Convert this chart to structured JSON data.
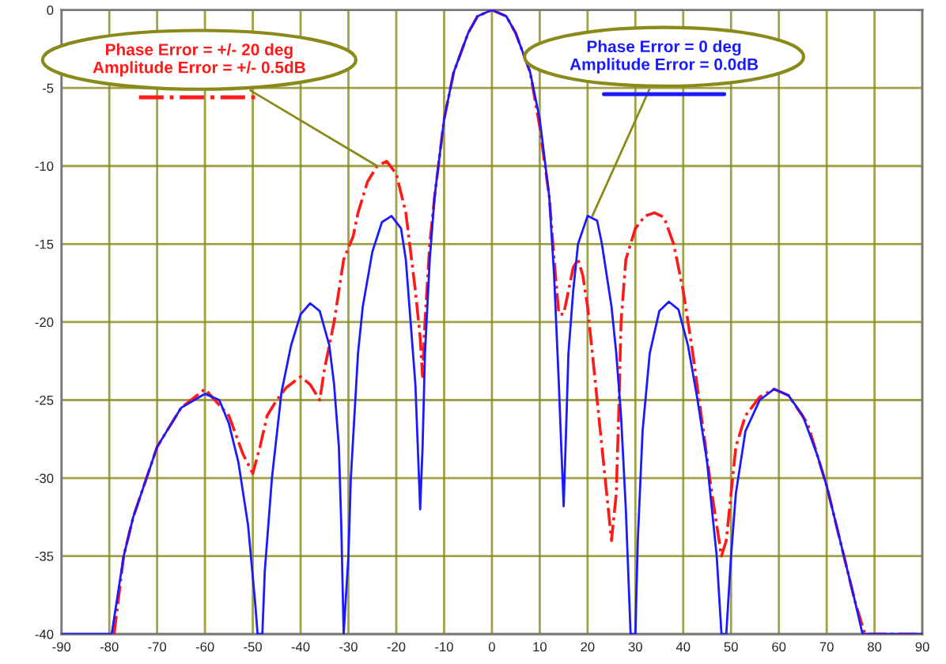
{
  "chart_data": {
    "type": "line",
    "xlim": [
      -90,
      90
    ],
    "xticks": [
      -90,
      -80,
      -70,
      -60,
      -50,
      -40,
      -30,
      -20,
      -10,
      0,
      10,
      20,
      30,
      40,
      50,
      60,
      70,
      80,
      90
    ],
    "ylim": [
      -40,
      0
    ],
    "yticks": [
      -40,
      -35,
      -30,
      -25,
      -20,
      -15,
      -10,
      -5,
      0
    ],
    "grid": true,
    "series": [
      {
        "color": "#ff1a1a",
        "line_style": "dashdot",
        "x": [
          -79,
          -77,
          -75,
          -70,
          -65,
          -60,
          -55,
          -52,
          -50,
          -48.5,
          -47,
          -45,
          -43,
          -40,
          -38,
          -36,
          -35,
          -33,
          -31,
          -29,
          -28,
          -26,
          -24,
          -22,
          -20,
          -18,
          -17,
          -16,
          -15,
          -14.5,
          -14,
          -13,
          -12,
          -10,
          -8,
          -5,
          -3,
          0,
          3,
          5,
          8,
          10,
          12,
          13,
          14,
          15,
          16,
          17,
          18,
          19,
          20,
          21,
          22,
          23,
          24,
          25,
          26,
          26.5,
          27,
          28,
          30,
          32,
          34,
          36,
          38,
          40,
          42,
          44,
          46,
          47,
          48,
          49,
          50,
          51,
          53,
          56,
          59,
          62,
          66,
          70,
          74,
          76,
          78,
          90
        ],
        "values": [
          -40,
          -35,
          -32.5,
          -28,
          -25.5,
          -24.3,
          -26,
          -28.5,
          -29.7,
          -28,
          -26,
          -25,
          -24.2,
          -23.5,
          -24,
          -25,
          -23,
          -20,
          -16,
          -14.5,
          -13,
          -11,
          -10,
          -9.7,
          -10.5,
          -13,
          -15.5,
          -18,
          -21,
          -23.5,
          -20,
          -15,
          -12,
          -7,
          -4,
          -1.5,
          -0.4,
          0,
          -0.4,
          -1.5,
          -4,
          -7.5,
          -12,
          -16,
          -19.5,
          -19.5,
          -18,
          -16.5,
          -16,
          -17,
          -19,
          -22,
          -25,
          -28,
          -31,
          -34,
          -31,
          -26,
          -20,
          -16,
          -14,
          -13.2,
          -13,
          -13.3,
          -15,
          -18,
          -22,
          -26.5,
          -31,
          -33,
          -35,
          -34,
          -31,
          -28,
          -26,
          -24.8,
          -24.3,
          -24.7,
          -26.5,
          -30.5,
          -35.5,
          -38,
          -40,
          -40
        ]
      },
      {
        "color": "#1a1aff",
        "line_style": "solid",
        "x": [
          -90,
          -80,
          -79.5,
          -77,
          -75,
          -70,
          -65,
          -60,
          -57,
          -55,
          -53,
          -51,
          -49.5,
          -49,
          -48,
          -47.5,
          -46,
          -44,
          -42,
          -40,
          -38,
          -36,
          -34,
          -33,
          -32,
          -31.5,
          -31,
          -30,
          -29.5,
          -28,
          -27,
          -25,
          -23,
          -21,
          -19,
          -18,
          -17,
          -16,
          -15.5,
          -15,
          -14.5,
          -14,
          -13,
          -12,
          -10,
          -8,
          -5,
          -3,
          0,
          3,
          5,
          8,
          10,
          12,
          13,
          14,
          14.5,
          15,
          15.5,
          16,
          17,
          18,
          20,
          22,
          23,
          25,
          26,
          27,
          28,
          29,
          30,
          30.5,
          31.5,
          33,
          35,
          37,
          39,
          41,
          43,
          45,
          47,
          48,
          49,
          50,
          51,
          53,
          56,
          59,
          62,
          65,
          68,
          70,
          72,
          74,
          76,
          77.5,
          90
        ],
        "values": [
          -40,
          -40,
          -40,
          -35,
          -32.5,
          -28,
          -25.5,
          -24.6,
          -25,
          -26.5,
          -29,
          -33,
          -38,
          -40,
          -40,
          -36,
          -30,
          -24.5,
          -21.5,
          -19.5,
          -18.8,
          -19.3,
          -21.5,
          -24,
          -28,
          -33,
          -40,
          -35,
          -30,
          -22,
          -19,
          -15.5,
          -13.6,
          -13.2,
          -14,
          -16,
          -20,
          -24,
          -28,
          -32,
          -28,
          -22,
          -16,
          -12,
          -7,
          -4,
          -1.5,
          -0.4,
          0,
          -0.4,
          -1.5,
          -4,
          -7,
          -12,
          -17,
          -24,
          -28,
          -31.8,
          -27,
          -22,
          -18,
          -15,
          -13.2,
          -13.5,
          -15,
          -19,
          -22,
          -26,
          -32,
          -40,
          -40,
          -34,
          -27,
          -22,
          -19.3,
          -18.7,
          -19.2,
          -21.5,
          -25,
          -29,
          -35,
          -40,
          -40,
          -35,
          -31,
          -27,
          -25,
          -24.3,
          -24.7,
          -26,
          -28.5,
          -30.5,
          -33,
          -35.5,
          -38,
          -40,
          -40
        ]
      }
    ],
    "annotations": [
      {
        "text": "Phase Error = +/- 20 deg\nAmplitude Error = +/- 0.5dB",
        "x": -24,
        "y": -10
      },
      {
        "text": "Phase Error = 0 deg\nAmplitude Error = 0.0dB",
        "x": 21,
        "y": -13.2
      }
    ]
  }
}
